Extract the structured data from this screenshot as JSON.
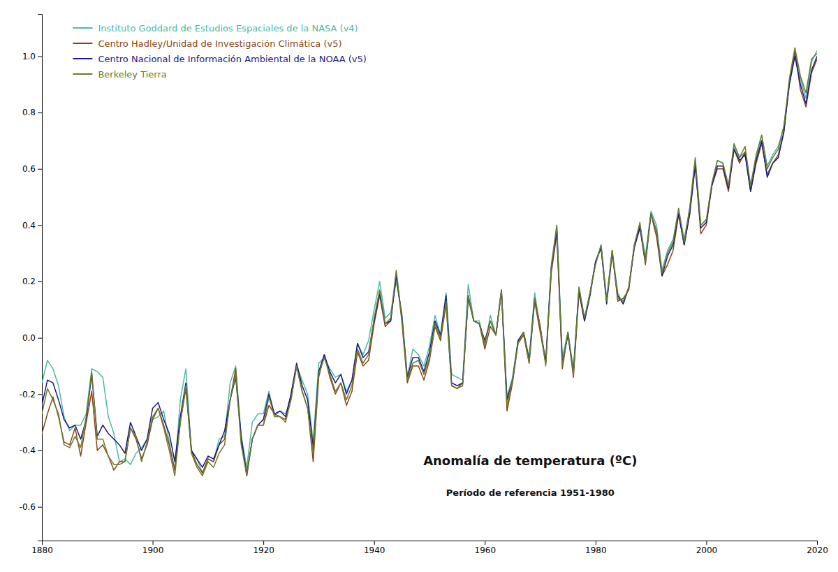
{
  "chart_data": {
    "type": "line",
    "title": "Anomalía de temperatura (ºC)",
    "subtitle": "Período de referencia 1951-1980",
    "x": [
      1880,
      1881,
      1882,
      1883,
      1884,
      1885,
      1886,
      1887,
      1888,
      1889,
      1890,
      1891,
      1892,
      1893,
      1894,
      1895,
      1896,
      1897,
      1898,
      1899,
      1900,
      1901,
      1902,
      1903,
      1904,
      1905,
      1906,
      1907,
      1908,
      1909,
      1910,
      1911,
      1912,
      1913,
      1914,
      1915,
      1916,
      1917,
      1918,
      1919,
      1920,
      1921,
      1922,
      1923,
      1924,
      1925,
      1926,
      1927,
      1928,
      1929,
      1930,
      1931,
      1932,
      1933,
      1934,
      1935,
      1936,
      1937,
      1938,
      1939,
      1940,
      1941,
      1942,
      1943,
      1944,
      1945,
      1946,
      1947,
      1948,
      1949,
      1950,
      1951,
      1952,
      1953,
      1954,
      1955,
      1956,
      1957,
      1958,
      1959,
      1960,
      1961,
      1962,
      1963,
      1964,
      1965,
      1966,
      1967,
      1968,
      1969,
      1970,
      1971,
      1972,
      1973,
      1974,
      1975,
      1976,
      1977,
      1978,
      1979,
      1980,
      1981,
      1982,
      1983,
      1984,
      1985,
      1986,
      1987,
      1988,
      1989,
      1990,
      1991,
      1992,
      1993,
      1994,
      1995,
      1996,
      1997,
      1998,
      1999,
      2000,
      2001,
      2002,
      2003,
      2004,
      2005,
      2006,
      2007,
      2008,
      2009,
      2010,
      2011,
      2012,
      2013,
      2014,
      2015,
      2016,
      2017,
      2018,
      2019,
      2020
    ],
    "xlim": [
      1880,
      2020
    ],
    "ylim": [
      -0.72,
      1.15
    ],
    "xticks": [
      1880,
      1900,
      1920,
      1940,
      1960,
      1980,
      2000,
      2020
    ],
    "yticks": [
      -0.6,
      -0.4,
      -0.2,
      {
        "value": 0.0,
        "label": "0.0"
      },
      0.2,
      0.4,
      0.6,
      0.8,
      {
        "value": 1.0,
        "label": "1.0"
      }
    ],
    "grid": false,
    "legend": "upper left",
    "series": [
      {
        "name": "Instituto Goddard de Estudios Espaciales de la NASA (v4)",
        "color": "#4db8a4",
        "values": [
          -0.16,
          -0.08,
          -0.11,
          -0.17,
          -0.28,
          -0.33,
          -0.31,
          -0.31,
          -0.27,
          -0.11,
          -0.12,
          -0.14,
          -0.28,
          -0.34,
          -0.44,
          -0.43,
          -0.45,
          -0.41,
          -0.39,
          -0.36,
          -0.29,
          -0.28,
          -0.26,
          -0.37,
          -0.47,
          -0.22,
          -0.11,
          -0.4,
          -0.43,
          -0.48,
          -0.43,
          -0.44,
          -0.36,
          -0.35,
          -0.16,
          -0.1,
          -0.35,
          -0.46,
          -0.3,
          -0.27,
          -0.27,
          -0.19,
          -0.28,
          -0.26,
          -0.27,
          -0.22,
          -0.1,
          -0.15,
          -0.2,
          -0.37,
          -0.09,
          -0.07,
          -0.11,
          -0.14,
          -0.13,
          -0.19,
          -0.15,
          -0.02,
          -0.06,
          -0.01,
          0.1,
          0.2,
          0.07,
          0.09,
          0.2,
          0.09,
          -0.14,
          -0.04,
          -0.06,
          -0.1,
          -0.03,
          0.08,
          0.01,
          0.16,
          -0.13,
          -0.14,
          -0.15,
          0.19,
          0.06,
          0.06,
          -0.03,
          0.08,
          0.01,
          0.16,
          -0.21,
          -0.14,
          -0.01,
          0.02,
          -0.07,
          0.16,
          0.03,
          -0.08,
          0.26,
          0.4,
          -0.07,
          0.02,
          -0.11,
          0.18,
          0.07,
          0.16,
          0.27,
          0.33,
          0.14,
          0.31,
          0.16,
          0.12,
          0.18,
          0.33,
          0.4,
          0.29,
          0.45,
          0.4,
          0.24,
          0.31,
          0.35,
          0.45,
          0.35,
          0.46,
          0.63,
          0.4,
          0.42,
          0.54,
          0.63,
          0.62,
          0.54,
          0.68,
          0.64,
          0.66,
          0.54,
          0.64,
          0.72,
          0.61,
          0.65,
          0.68,
          0.75,
          0.9,
          1.01,
          0.92,
          0.85,
          0.98,
          1.02
        ]
      },
      {
        "name": "Centro Hadley/Unidad de Investigación Climática (v5)",
        "color": "#8B4513",
        "values": [
          -0.34,
          -0.27,
          -0.21,
          -0.28,
          -0.37,
          -0.38,
          -0.32,
          -0.42,
          -0.3,
          -0.19,
          -0.4,
          -0.38,
          -0.42,
          -0.47,
          -0.44,
          -0.44,
          -0.32,
          -0.36,
          -0.43,
          -0.38,
          -0.29,
          -0.25,
          -0.31,
          -0.38,
          -0.47,
          -0.3,
          -0.18,
          -0.4,
          -0.45,
          -0.48,
          -0.43,
          -0.44,
          -0.38,
          -0.36,
          -0.22,
          -0.11,
          -0.37,
          -0.48,
          -0.36,
          -0.31,
          -0.31,
          -0.24,
          -0.27,
          -0.28,
          -0.29,
          -0.2,
          -0.1,
          -0.19,
          -0.25,
          -0.44,
          -0.14,
          -0.06,
          -0.14,
          -0.2,
          -0.16,
          -0.24,
          -0.19,
          -0.05,
          -0.1,
          -0.08,
          0.05,
          0.15,
          0.04,
          0.06,
          0.23,
          0.06,
          -0.16,
          -0.1,
          -0.1,
          -0.15,
          -0.08,
          0.04,
          -0.01,
          0.12,
          -0.17,
          -0.18,
          -0.16,
          0.14,
          0.06,
          0.05,
          -0.04,
          0.04,
          0.01,
          0.17,
          -0.26,
          -0.16,
          -0.02,
          0.01,
          -0.09,
          0.13,
          0.02,
          -0.09,
          0.23,
          0.37,
          -0.11,
          0.02,
          -0.14,
          0.16,
          0.06,
          0.16,
          0.27,
          0.32,
          0.13,
          0.31,
          0.13,
          0.14,
          0.17,
          0.33,
          0.4,
          0.26,
          0.44,
          0.36,
          0.22,
          0.26,
          0.31,
          0.44,
          0.33,
          0.44,
          0.62,
          0.37,
          0.4,
          0.54,
          0.6,
          0.6,
          0.52,
          0.67,
          0.62,
          0.66,
          0.52,
          0.62,
          0.69,
          0.58,
          0.62,
          0.65,
          0.73,
          0.91,
          1.02,
          0.88,
          0.82,
          0.94,
          0.99
        ]
      },
      {
        "name": "Centro Nacional de Información Ambiental de la NOAA (v5)",
        "color": "#1a1a8c",
        "values": [
          -0.24,
          -0.15,
          -0.16,
          -0.22,
          -0.29,
          -0.32,
          -0.31,
          -0.36,
          -0.29,
          -0.13,
          -0.35,
          -0.31,
          -0.34,
          -0.36,
          -0.38,
          -0.41,
          -0.3,
          -0.35,
          -0.4,
          -0.36,
          -0.25,
          -0.23,
          -0.29,
          -0.34,
          -0.44,
          -0.28,
          -0.16,
          -0.4,
          -0.43,
          -0.46,
          -0.42,
          -0.43,
          -0.38,
          -0.33,
          -0.22,
          -0.14,
          -0.35,
          -0.49,
          -0.36,
          -0.31,
          -0.29,
          -0.2,
          -0.27,
          -0.26,
          -0.28,
          -0.2,
          -0.09,
          -0.17,
          -0.22,
          -0.39,
          -0.12,
          -0.06,
          -0.12,
          -0.16,
          -0.13,
          -0.2,
          -0.15,
          -0.02,
          -0.07,
          -0.05,
          0.06,
          0.16,
          0.05,
          0.06,
          0.22,
          0.08,
          -0.14,
          -0.07,
          -0.07,
          -0.12,
          -0.05,
          0.06,
          0.01,
          0.15,
          -0.16,
          -0.17,
          -0.16,
          0.15,
          0.06,
          0.05,
          -0.01,
          0.06,
          0.01,
          0.17,
          -0.22,
          -0.15,
          -0.01,
          0.02,
          -0.08,
          0.14,
          0.04,
          -0.09,
          0.25,
          0.38,
          -0.09,
          0.01,
          -0.12,
          0.17,
          0.06,
          0.15,
          0.27,
          0.32,
          0.12,
          0.3,
          0.15,
          0.12,
          0.18,
          0.32,
          0.39,
          0.27,
          0.44,
          0.38,
          0.22,
          0.29,
          0.33,
          0.44,
          0.33,
          0.44,
          0.61,
          0.39,
          0.41,
          0.54,
          0.61,
          0.61,
          0.53,
          0.67,
          0.63,
          0.65,
          0.52,
          0.63,
          0.7,
          0.57,
          0.62,
          0.64,
          0.73,
          0.9,
          1.0,
          0.9,
          0.83,
          0.95,
          1.0
        ]
      },
      {
        "name": "Berkeley Tierra",
        "color": "#6b7c2e",
        "values": [
          -0.27,
          -0.18,
          -0.22,
          -0.27,
          -0.38,
          -0.39,
          -0.35,
          -0.39,
          -0.28,
          -0.12,
          -0.36,
          -0.36,
          -0.42,
          -0.45,
          -0.45,
          -0.44,
          -0.32,
          -0.35,
          -0.44,
          -0.37,
          -0.28,
          -0.25,
          -0.32,
          -0.4,
          -0.49,
          -0.3,
          -0.17,
          -0.41,
          -0.46,
          -0.49,
          -0.44,
          -0.46,
          -0.41,
          -0.38,
          -0.22,
          -0.13,
          -0.38,
          -0.49,
          -0.36,
          -0.31,
          -0.31,
          -0.21,
          -0.28,
          -0.28,
          -0.3,
          -0.22,
          -0.1,
          -0.19,
          -0.25,
          -0.41,
          -0.13,
          -0.07,
          -0.13,
          -0.19,
          -0.16,
          -0.22,
          -0.17,
          -0.04,
          -0.09,
          -0.06,
          0.07,
          0.17,
          0.05,
          0.07,
          0.24,
          0.07,
          -0.15,
          -0.09,
          -0.08,
          -0.13,
          -0.07,
          0.05,
          0.0,
          0.13,
          -0.17,
          -0.18,
          -0.17,
          0.15,
          0.06,
          0.05,
          -0.02,
          0.06,
          0.01,
          0.17,
          -0.24,
          -0.15,
          -0.02,
          0.02,
          -0.09,
          0.14,
          0.04,
          -0.1,
          0.25,
          0.4,
          -0.1,
          0.02,
          -0.13,
          0.18,
          0.07,
          0.16,
          0.26,
          0.33,
          0.13,
          0.31,
          0.14,
          0.13,
          0.18,
          0.33,
          0.41,
          0.27,
          0.44,
          0.38,
          0.23,
          0.3,
          0.34,
          0.46,
          0.34,
          0.46,
          0.64,
          0.4,
          0.42,
          0.55,
          0.63,
          0.62,
          0.54,
          0.69,
          0.64,
          0.68,
          0.54,
          0.65,
          0.72,
          0.6,
          0.64,
          0.67,
          0.75,
          0.92,
          1.03,
          0.93,
          0.87,
          0.99,
          1.01
        ]
      }
    ]
  }
}
